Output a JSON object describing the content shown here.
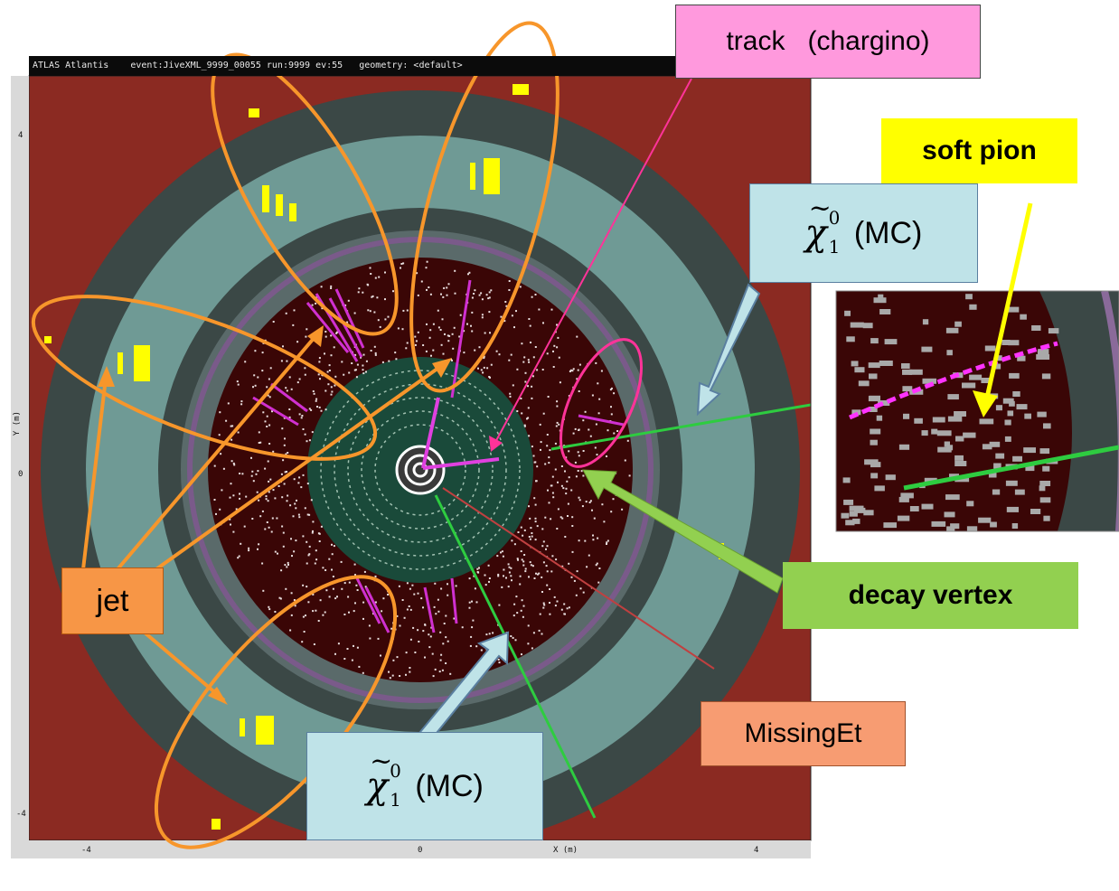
{
  "header": {
    "title_bar": "ATLAS Atlantis    event:JiveXML_9999_00055 run:9999 ev:55   geometry: <default>"
  },
  "axes": {
    "y_label": "Y (m)",
    "x_label": "X (m)",
    "x_ticks": [
      "-4",
      "0",
      "4"
    ],
    "y_ticks": [
      "4",
      "0",
      "-4"
    ]
  },
  "labels": {
    "track": "track   (chargino)",
    "soft_pion": "soft pion",
    "chi_symbol": "χ",
    "chi_sup": "0",
    "chi_sub": "1",
    "chi_tilde": "~",
    "mc": "(MC)",
    "decay_vertex": "decay vertex",
    "jet": "jet",
    "missing_et": "MissingEt"
  },
  "colors": {
    "calorimeter_outer": "#8b2a22",
    "ring_dark": "#3b4846",
    "ring_teal": "#6f9a95",
    "inner_detector": "#3a0606",
    "tracker": "#1a4a3a",
    "jet_outline": "#f7962b",
    "track_pink": "#ff3399",
    "neutralino_green": "#2ecc40",
    "soft_pion_yellow": "#ffff00",
    "arrow_blue": "#bfe3e8"
  }
}
